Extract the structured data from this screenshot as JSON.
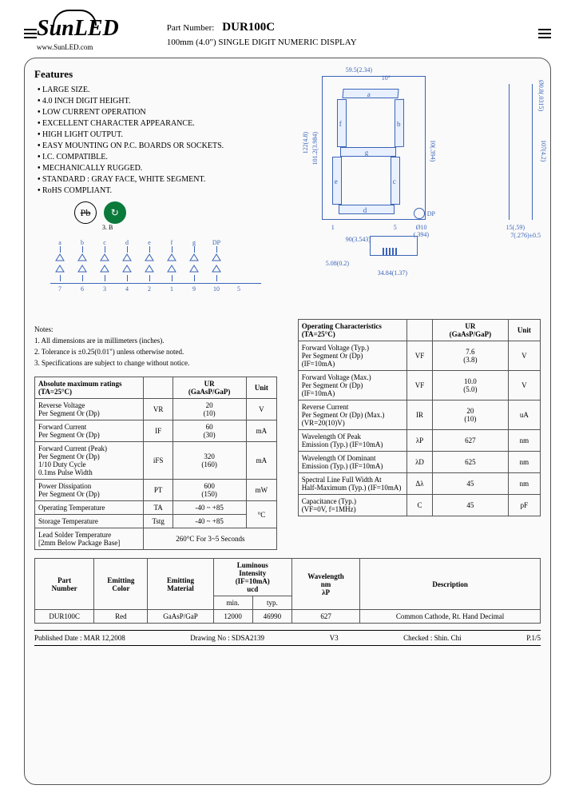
{
  "header": {
    "logo": "SunLED",
    "url": "www.SunLED.com",
    "partLabel": "Part Number:",
    "partNum": "DUR100C",
    "subtitle": "100mm (4.0\") SINGLE DIGIT NUMERIC DISPLAY"
  },
  "features": {
    "title": "Features",
    "items": [
      "LARGE SIZE.",
      "4.0 INCH DIGIT HEIGHT.",
      "LOW CURRENT OPERATION",
      "EXCELLENT CHARACTER APPEARANCE.",
      "HIGH LIGHT OUTPUT.",
      "EASY MOUNTING ON P.C. BOARDS OR SOCKETS.",
      "I.C. COMPATIBLE.",
      "MECHANICALLY RUGGED.",
      "STANDARD : GRAY FACE, WHITE SEGMENT.",
      "RoHS COMPLIANT."
    ],
    "iconSub": "3. B"
  },
  "segments": {
    "a": "a",
    "b": "b",
    "c": "c",
    "d": "d",
    "e": "e",
    "f": "f",
    "g": "g",
    "dp": "DP"
  },
  "dims": {
    "w": "59.5(2.34)",
    "ang": "10°",
    "h": "122(4.8)",
    "ih": "101.2(3.984)",
    "sw": "10(.394)",
    "sh": "10(.394)",
    "bw": "90(3.543)",
    "dpd": "Ø10",
    "dpd2": "(.394)",
    "tw": "15(.59)",
    "th": "107(4.2)",
    "tt": "Ø0.8(.0315)",
    "tb": "7(.276)±0.5",
    "bh": "5.08(0.2)",
    "bw2": "34.84(1.37)",
    "p1": "1",
    "p5": "5"
  },
  "pins": {
    "labels": [
      "a",
      "b",
      "c",
      "d",
      "e",
      "f",
      "g",
      "DP"
    ],
    "nums": [
      "7",
      "6",
      "3",
      "4",
      "2",
      "1",
      "9",
      "10",
      "5"
    ]
  },
  "notes": {
    "title": "Notes:",
    "items": [
      "1. All dimensions are in millimeters (inches).",
      "2. Tolerance is ±0.25(0.01\") unless otherwise noted.",
      "3. Specifications are subject to change without notice."
    ]
  },
  "absTable": {
    "title": "Absolute maximum ratings",
    "cond": "(TA=25°C)",
    "col2": "UR",
    "col2b": "(GaAsP/GaP)",
    "col3": "Unit",
    "rows": [
      {
        "p": "Reverse Voltage\nPer Segment Or (Dp)",
        "s": "VR",
        "v": "20\n(10)",
        "u": "V"
      },
      {
        "p": "Forward Current\nPer Segment Or (Dp)",
        "s": "IF",
        "v": "60\n(30)",
        "u": "mA"
      },
      {
        "p": "Forward Current (Peak)\nPer Segment Or (Dp)\n1/10 Duty Cycle\n0.1ms Pulse Width",
        "s": "iFS",
        "v": "320\n(160)",
        "u": "mA"
      },
      {
        "p": "Power Dissipation\nPer Segment Or (Dp)",
        "s": "PT",
        "v": "600\n(150)",
        "u": "mW"
      },
      {
        "p": "Operating Temperature",
        "s": "TA",
        "v": "-40 ~ +85",
        "u": "°C",
        "rs": "2"
      },
      {
        "p": "Storage Temperature",
        "s": "Tstg",
        "v": "-40 ~ +85",
        "u": ""
      },
      {
        "p": "Lead Solder Temperature\n[2mm Below Package Base]",
        "s": "",
        "v": "260°C For 3~5 Seconds",
        "u": "",
        "cs": "3"
      }
    ]
  },
  "opTable": {
    "title": "Operating Characteristics",
    "cond": "(TA=25°C)",
    "col2": "UR",
    "col2b": "(GaAsP/GaP)",
    "col3": "Unit",
    "rows": [
      {
        "p": "Forward Voltage (Typ.)\nPer Segment Or (Dp)\n(IF=10mA)",
        "s": "VF",
        "v": "7.6\n(3.8)",
        "u": "V"
      },
      {
        "p": "Forward Voltage (Max.)\nPer Segment Or (Dp)\n(IF=10mA)",
        "s": "VF",
        "v": "10.0\n(5.0)",
        "u": "V"
      },
      {
        "p": "Reverse Current\nPer Segment Or (Dp) (Max.)\n(VR=20(10)V)",
        "s": "IR",
        "v": "20\n(10)",
        "u": "uA"
      },
      {
        "p": "Wavelength Of Peak\nEmission (Typ.) (IF=10mA)",
        "s": "λP",
        "v": "627",
        "u": "nm"
      },
      {
        "p": "Wavelength Of Dominant\nEmission (Typ.) (IF=10mA)",
        "s": "λD",
        "v": "625",
        "u": "nm"
      },
      {
        "p": "Spectral Line Full Width At\nHalf-Maximum (Typ.) (IF=10mA)",
        "s": "Δλ",
        "v": "45",
        "u": "nm"
      },
      {
        "p": "Capacitance (Typ.)\n(VF=0V, f=1MHz)",
        "s": "C",
        "v": "45",
        "u": "pF"
      }
    ]
  },
  "bottomTable": {
    "headers": [
      "Part\nNumber",
      "Emitting\nColor",
      "Emitting\nMaterial",
      "Luminous\nIntensity\n(IF=10mA)\nucd",
      "",
      "Wavelength\nnm\nλP",
      "Description"
    ],
    "sub": [
      "",
      "",
      "",
      "min.",
      "typ.",
      "",
      ""
    ],
    "row": [
      "DUR100C",
      "Red",
      "GaAsP/GaP",
      "12000",
      "46990",
      "627",
      "Common Cathode, Rt. Hand Decimal"
    ]
  },
  "footer": {
    "date": "Published Date : MAR 12,2008",
    "drawing": "Drawing No : SDSA2139",
    "ver": "V3",
    "checked": "Checked : Shin. Chi",
    "page": "P.1/5"
  }
}
